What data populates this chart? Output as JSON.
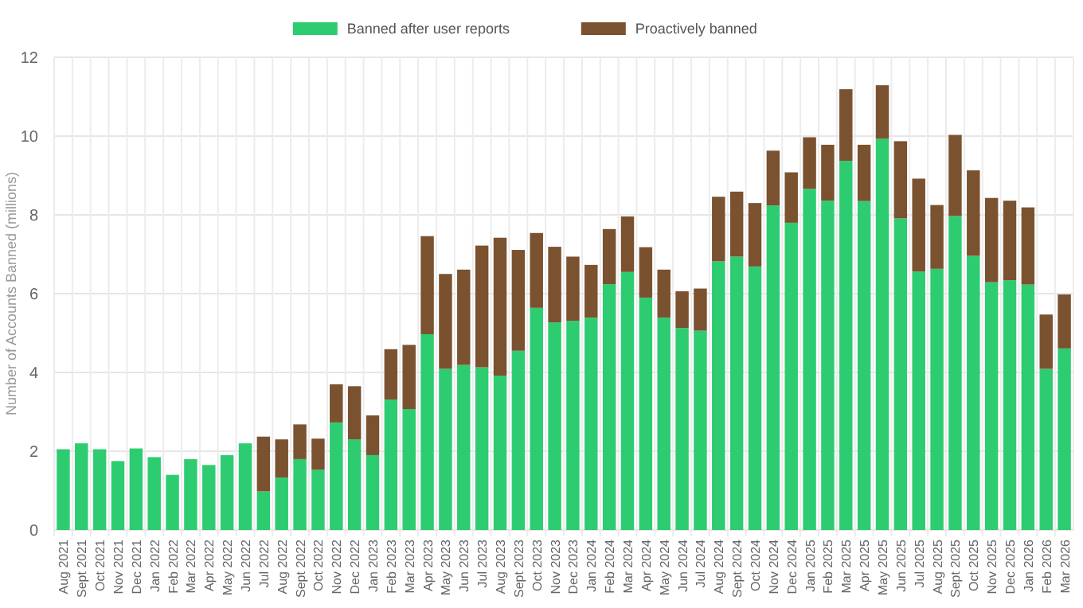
{
  "chart_data": {
    "type": "bar",
    "stacked": true,
    "ylabel": "Number of Accounts Banned (millions)",
    "categories": [
      "Aug 2021",
      "Sept 2021",
      "Oct 2021",
      "Nov 2021",
      "Dec 2021",
      "Jan 2022",
      "Feb 2022",
      "Mar 2022",
      "Apr 2022",
      "May 2022",
      "Jun 2022",
      "Jul 2022",
      "Aug 2022",
      "Sept 2022",
      "Oct 2022",
      "Nov 2022",
      "Dec 2022",
      "Jan 2023",
      "Feb 2023",
      "Mar 2023",
      "Apr 2023",
      "May 2023",
      "Jun 2023",
      "Jul 2023",
      "Aug 2023",
      "Sept 2023",
      "Oct 2023",
      "Nov 2023",
      "Dec 2023",
      "Jan 2024",
      "Feb 2024",
      "Mar 2024",
      "Apr 2024",
      "May 2024",
      "Jun 2024",
      "Jul 2024",
      "Aug 2024",
      "Sept 2024",
      "Oct 2024",
      "Nov 2024",
      "Dec 2024",
      "Jan 2025",
      "Feb 2025",
      "Mar 2025",
      "Apr 2025",
      "May 2025",
      "Jun 2025",
      "Jul 2025",
      "Aug 2025",
      "Sept 2025",
      "Oct 2025",
      "Nov 2025",
      "Dec 2025",
      "Jan 2026",
      "Feb 2026",
      "Mar 2026"
    ],
    "series": [
      {
        "name": "Banned after user reports",
        "color": "#2ecc71",
        "values": [
          2.05,
          2.2,
          2.05,
          1.75,
          2.07,
          1.85,
          1.4,
          1.8,
          1.65,
          1.9,
          2.2,
          0.98,
          1.33,
          1.8,
          1.53,
          2.73,
          2.3,
          1.9,
          3.31,
          3.07,
          4.97,
          4.09,
          4.19,
          4.13,
          3.92,
          4.55,
          5.64,
          5.27,
          5.31,
          5.39,
          6.24,
          6.55,
          5.9,
          5.39,
          5.13,
          5.06,
          6.82,
          6.94,
          6.69,
          8.24,
          7.8,
          8.66,
          8.36,
          9.37,
          8.35,
          9.93,
          7.91,
          6.56,
          6.63,
          7.97,
          6.96,
          6.29,
          6.34,
          6.23,
          4.09,
          4.61
        ]
      },
      {
        "name": "Proactively banned",
        "color": "#7a5230",
        "values": [
          0,
          0,
          0,
          0,
          0,
          0,
          0,
          0,
          0,
          0,
          0,
          1.39,
          0.97,
          0.88,
          0.79,
          0.97,
          1.35,
          1.01,
          1.28,
          1.63,
          2.49,
          2.41,
          2.42,
          3.09,
          3.5,
          2.56,
          1.9,
          1.92,
          1.63,
          1.34,
          1.4,
          1.41,
          1.28,
          1.22,
          0.93,
          1.07,
          1.64,
          1.65,
          1.61,
          1.39,
          1.28,
          1.31,
          1.42,
          1.82,
          1.43,
          1.36,
          1.96,
          2.36,
          1.62,
          2.06,
          2.17,
          2.14,
          2.02,
          1.96,
          1.38,
          1.37
        ]
      }
    ],
    "ylim": [
      0,
      12
    ],
    "yticks": [
      0,
      2,
      4,
      6,
      8,
      10,
      12
    ],
    "grid": true,
    "legend": "top"
  }
}
